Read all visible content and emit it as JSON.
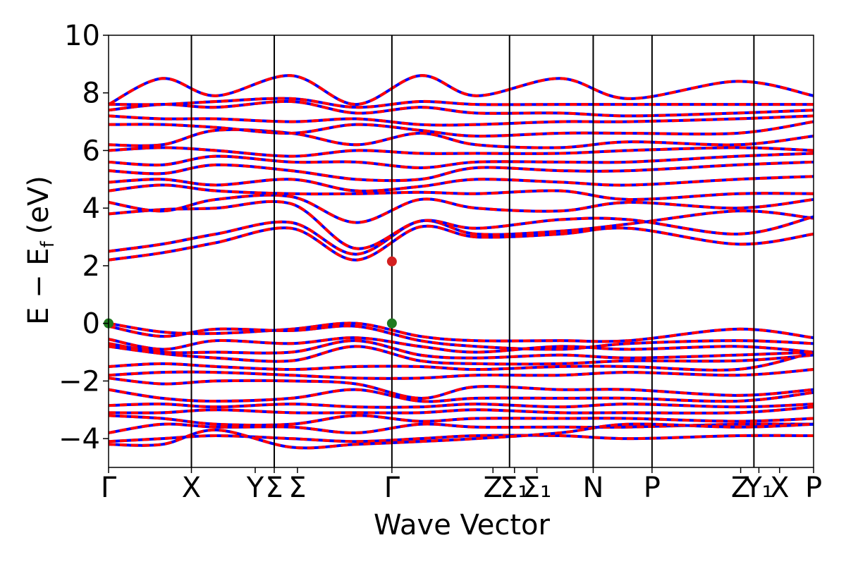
{
  "chart_data": {
    "type": "line",
    "xlabel": "Wave Vector",
    "ylabel": "E − E",
    "ylabel_sub": "f",
    "ylabel_unit": "(eV)",
    "ylim": [
      -5,
      10
    ],
    "yticks": [
      -4,
      -2,
      0,
      2,
      4,
      6,
      8,
      10
    ],
    "ytick_labels": [
      "−4",
      "−2",
      "0",
      "2",
      "4",
      "6",
      "8",
      "10"
    ],
    "xlim": [
      0,
      8.51
    ],
    "kpoint_boundaries": [
      1,
      2,
      3.42,
      4.84,
      5.85,
      6.56,
      7.79
    ],
    "kpoint_labels": [
      {
        "x": 0,
        "text": "Γ"
      },
      {
        "x": 1,
        "text": "X"
      },
      {
        "x": 1.77,
        "text": "Y"
      },
      {
        "x": 2.0,
        "text": "Σ"
      },
      {
        "x": 2.28,
        "text": "Σ"
      },
      {
        "x": 3.42,
        "text": "Γ"
      },
      {
        "x": 4.64,
        "text": "Z"
      },
      {
        "x": 4.9,
        "text": "Σ₁"
      },
      {
        "x": 5.17,
        "text": "Σ₁"
      },
      {
        "x": 5.85,
        "text": "N"
      },
      {
        "x": 6.56,
        "text": "P"
      },
      {
        "x": 7.63,
        "text": "Z"
      },
      {
        "x": 7.85,
        "text": "Y₁"
      },
      {
        "x": 8.1,
        "text": "X"
      },
      {
        "x": 8.51,
        "text": "P"
      }
    ],
    "band_gap_points": [
      {
        "x": 0,
        "y": 0,
        "color": "#1f7a1f"
      },
      {
        "x": 3.42,
        "y": 0,
        "color": "#1f7a1f"
      },
      {
        "x": 3.42,
        "y": 2.15,
        "color": "#d42020"
      }
    ],
    "series": [
      {
        "color_primary": "#0000ff",
        "color_dash": "#ff0000"
      }
    ],
    "bands": {
      "conduction": [
        [
          2.2,
          2.45,
          2.8,
          3.3,
          2.2,
          3.35,
          3.0,
          3.1,
          3.3,
          2.75,
          3.1
        ],
        [
          2.5,
          2.75,
          3.1,
          3.5,
          2.4,
          3.55,
          3.1,
          3.2,
          3.45,
          3.9,
          3.65
        ],
        [
          3.8,
          3.95,
          4.0,
          4.15,
          2.6,
          3.55,
          3.3,
          3.6,
          3.6,
          3.1,
          3.7
        ],
        [
          4.2,
          3.9,
          4.3,
          4.4,
          3.5,
          4.3,
          4.0,
          3.9,
          4.2,
          4.0,
          4.3
        ],
        [
          4.6,
          4.8,
          4.6,
          4.5,
          4.5,
          4.55,
          4.5,
          4.6,
          4.3,
          4.5,
          4.5
        ],
        [
          4.9,
          5.0,
          4.8,
          5.0,
          4.6,
          4.75,
          5.0,
          4.9,
          4.8,
          5.0,
          5.1
        ],
        [
          5.3,
          5.2,
          5.5,
          5.3,
          5.0,
          5.0,
          5.4,
          5.3,
          5.3,
          5.5,
          5.6
        ],
        [
          5.6,
          5.5,
          5.8,
          5.6,
          5.6,
          5.4,
          5.6,
          5.6,
          5.6,
          5.8,
          5.9
        ],
        [
          6.0,
          6.1,
          6.0,
          5.8,
          6.0,
          5.9,
          5.9,
          5.9,
          6.0,
          6.1,
          6.0
        ],
        [
          6.2,
          6.2,
          6.7,
          6.6,
          6.2,
          6.6,
          6.2,
          6.1,
          6.3,
          6.2,
          6.5
        ],
        [
          6.9,
          6.9,
          6.8,
          6.6,
          6.9,
          6.7,
          6.5,
          6.6,
          6.6,
          6.6,
          7.0
        ],
        [
          7.2,
          7.1,
          7.1,
          7.0,
          7.1,
          6.9,
          6.9,
          7.0,
          7.0,
          7.1,
          7.2
        ],
        [
          7.4,
          7.6,
          7.5,
          7.7,
          7.3,
          7.5,
          7.3,
          7.3,
          7.2,
          7.3,
          7.4
        ],
        [
          7.6,
          7.6,
          7.7,
          7.8,
          7.5,
          7.7,
          7.6,
          7.6,
          7.6,
          7.6,
          7.6
        ],
        [
          7.6,
          8.5,
          7.9,
          8.6,
          7.6,
          8.6,
          7.9,
          8.5,
          7.8,
          8.4,
          7.9
        ]
      ],
      "valence": [
        [
          0.0,
          -0.3,
          -0.35,
          -0.2,
          0.0,
          -0.45,
          -0.6,
          -0.6,
          -0.6,
          -0.2,
          -0.5
        ],
        [
          -0.1,
          -0.45,
          -0.2,
          -0.25,
          -0.1,
          -0.6,
          -0.8,
          -0.9,
          -0.7,
          -0.6,
          -0.7
        ],
        [
          -0.55,
          -0.9,
          -0.6,
          -0.7,
          -0.5,
          -0.8,
          -1.0,
          -0.8,
          -0.9,
          -0.8,
          -1.0
        ],
        [
          -0.7,
          -1.0,
          -1.0,
          -1.0,
          -0.6,
          -1.1,
          -1.2,
          -1.1,
          -1.2,
          -1.1,
          -1.0
        ],
        [
          -0.8,
          -1.05,
          -1.2,
          -1.3,
          -0.8,
          -1.3,
          -1.4,
          -1.4,
          -1.3,
          -1.3,
          -1.1
        ],
        [
          -1.5,
          -1.4,
          -1.5,
          -1.6,
          -1.5,
          -1.5,
          -1.6,
          -1.5,
          -1.5,
          -1.6,
          -1.0
        ],
        [
          -1.8,
          -1.7,
          -1.7,
          -1.8,
          -1.9,
          -1.9,
          -1.8,
          -1.8,
          -1.7,
          -1.8,
          -1.6
        ],
        [
          -1.9,
          -2.1,
          -2.0,
          -2.0,
          -2.1,
          -2.6,
          -2.2,
          -2.3,
          -2.3,
          -2.5,
          -2.3
        ],
        [
          -2.3,
          -2.6,
          -2.7,
          -2.6,
          -2.3,
          -2.7,
          -2.6,
          -2.6,
          -2.6,
          -2.7,
          -2.4
        ],
        [
          -2.85,
          -2.8,
          -2.9,
          -2.8,
          -2.9,
          -2.9,
          -2.8,
          -2.9,
          -2.8,
          -2.9,
          -2.8
        ],
        [
          -3.1,
          -3.1,
          -3.0,
          -3.1,
          -3.1,
          -3.1,
          -3.0,
          -3.1,
          -3.1,
          -3.1,
          -2.9
        ],
        [
          -3.2,
          -3.3,
          -3.5,
          -3.5,
          -3.2,
          -3.4,
          -3.3,
          -3.3,
          -3.3,
          -3.4,
          -3.3
        ],
        [
          -3.8,
          -3.5,
          -3.6,
          -3.6,
          -3.8,
          -3.5,
          -3.6,
          -3.6,
          -3.6,
          -3.5,
          -3.5
        ],
        [
          -4.1,
          -4.0,
          -3.9,
          -4.0,
          -4.1,
          -4.0,
          -3.9,
          -3.9,
          -4.0,
          -3.9,
          -3.9
        ],
        [
          -4.2,
          -4.2,
          -3.7,
          -4.3,
          -4.2,
          -4.1,
          -4.0,
          -3.8,
          -3.5,
          -3.6,
          -3.5
        ]
      ],
      "x_samples": [
        0,
        0.5,
        1.0,
        1.7,
        2.3,
        2.9,
        3.42,
        4.2,
        4.84,
        5.85,
        6.56
      ]
    }
  }
}
